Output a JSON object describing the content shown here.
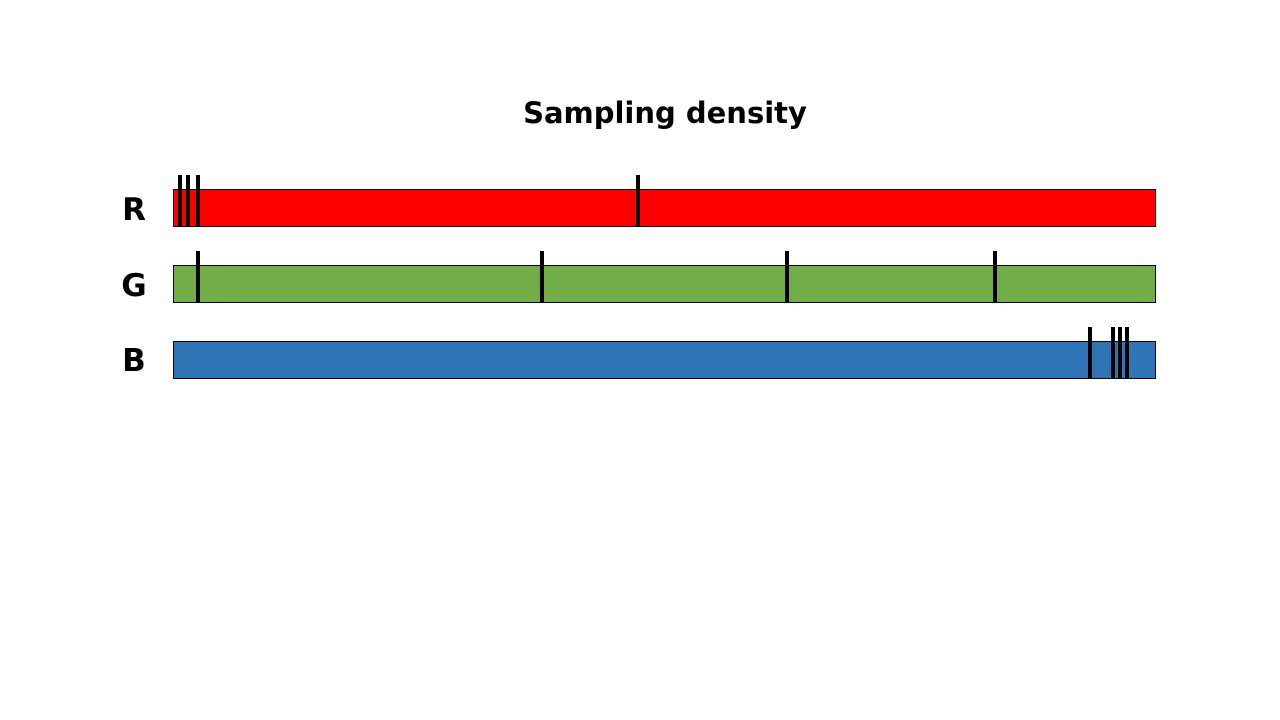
{
  "title": "Sampling density",
  "channels": [
    {
      "label": "R",
      "color": "#ff0000",
      "samples": [
        0.007,
        0.015,
        0.025,
        0.473
      ]
    },
    {
      "label": "G",
      "color": "#70ad47",
      "samples": [
        0.025,
        0.375,
        0.625,
        0.836
      ]
    },
    {
      "label": "B",
      "color": "#2e75b6",
      "samples": [
        0.933,
        0.956,
        0.963,
        0.971
      ]
    }
  ]
}
